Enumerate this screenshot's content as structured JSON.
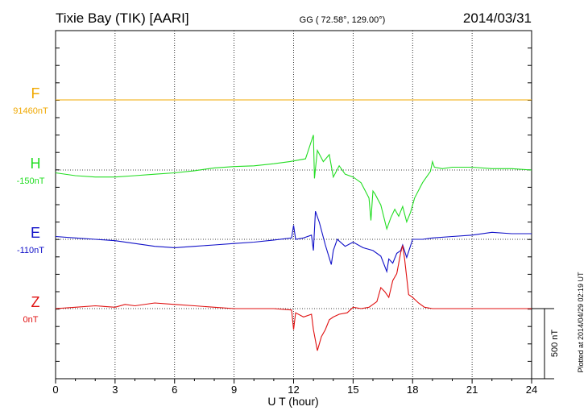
{
  "header": {
    "station": "Tixie Bay (TIK)  [AARI]",
    "coords": "GG ( 72.58°, 129.00°)",
    "date": "2014/03/31"
  },
  "plotted_note": "Plotted at 2014/04/29 02:19 UT",
  "scale_label": "500 nT",
  "colors": {
    "F": "#f0a800",
    "H": "#22dd22",
    "E": "#1010c8",
    "Z": "#e01010"
  },
  "chart_data": {
    "type": "line",
    "xlabel": "U T (hour)",
    "xlim": [
      0,
      24
    ],
    "x_ticks": [
      0,
      3,
      6,
      9,
      12,
      15,
      18,
      21,
      24
    ],
    "x_tick_labels": [
      "0",
      "3",
      "6",
      "9",
      "12",
      "15",
      "18",
      "21",
      "24"
    ],
    "grid": true,
    "scale_bar_nT": 500,
    "series": [
      {
        "name": "F",
        "baseline_label": "91460nT",
        "color": "#f0a800",
        "x": [
          0,
          6,
          12,
          18,
          24
        ],
        "values": [
          0,
          0,
          0,
          0,
          0
        ]
      },
      {
        "name": "H",
        "baseline_label": "-150nT",
        "color": "#22dd22",
        "x": [
          0,
          1,
          2,
          3,
          4,
          5,
          6,
          7,
          8,
          9,
          10,
          11,
          11.8,
          12.6,
          13.0,
          13.05,
          13.2,
          13.5,
          13.8,
          14.0,
          14.3,
          14.6,
          15.0,
          15.4,
          15.8,
          15.9,
          16.0,
          16.1,
          16.4,
          16.7,
          16.9,
          17.1,
          17.3,
          17.5,
          17.7,
          17.9,
          18.1,
          18.5,
          18.9,
          19.0,
          19.1,
          19.5,
          20,
          21,
          22,
          23,
          24
        ],
        "values": [
          -20,
          -40,
          -50,
          -50,
          -40,
          -30,
          -20,
          -5,
          15,
          25,
          30,
          45,
          60,
          80,
          250,
          -60,
          140,
          60,
          110,
          -50,
          30,
          -30,
          -50,
          -90,
          -200,
          -360,
          -150,
          -170,
          -250,
          -420,
          -340,
          -280,
          -330,
          -260,
          -370,
          -300,
          -200,
          -90,
          -10,
          60,
          20,
          10,
          20,
          20,
          10,
          10,
          0
        ]
      },
      {
        "name": "E",
        "baseline_label": "-110nT",
        "color": "#1010c8",
        "x": [
          0,
          1,
          2,
          3,
          4,
          5,
          6,
          7,
          8,
          9,
          10,
          11,
          11.9,
          12.0,
          12.1,
          12.5,
          12.9,
          13.0,
          13.1,
          13.3,
          13.6,
          13.9,
          14.0,
          14.2,
          14.6,
          15.0,
          15.5,
          16.0,
          16.4,
          16.7,
          16.8,
          17.0,
          17.2,
          17.4,
          17.5,
          17.7,
          18.0,
          18.5,
          19,
          20,
          21,
          22,
          23,
          24
        ],
        "values": [
          20,
          10,
          0,
          -10,
          -30,
          -50,
          -60,
          -50,
          -40,
          -30,
          -20,
          -5,
          10,
          100,
          0,
          10,
          30,
          -80,
          200,
          120,
          -40,
          -180,
          -80,
          0,
          -50,
          -20,
          -60,
          -80,
          -120,
          -230,
          -140,
          -170,
          -100,
          -80,
          -40,
          -130,
          0,
          0,
          10,
          20,
          30,
          50,
          40,
          40
        ]
      },
      {
        "name": "Z",
        "baseline_label": "0nT",
        "color": "#e01010",
        "x": [
          0,
          1,
          2,
          3,
          3.5,
          4,
          5,
          6,
          7,
          8,
          9,
          10,
          11,
          11.9,
          12.0,
          12.1,
          12.5,
          12.9,
          13.0,
          13.2,
          13.4,
          13.6,
          13.8,
          14.0,
          14.3,
          14.7,
          15.0,
          15.4,
          15.8,
          16.2,
          16.4,
          16.6,
          16.8,
          17.0,
          17.2,
          17.4,
          17.5,
          17.6,
          17.8,
          18.0,
          18.3,
          18.6,
          19,
          20,
          21,
          22,
          23,
          24
        ],
        "values": [
          0,
          10,
          20,
          10,
          30,
          20,
          40,
          30,
          20,
          10,
          0,
          0,
          0,
          -10,
          -150,
          -30,
          -60,
          -40,
          -150,
          -300,
          -200,
          -150,
          -80,
          -60,
          -40,
          -30,
          10,
          0,
          10,
          50,
          150,
          120,
          80,
          200,
          250,
          400,
          450,
          350,
          100,
          80,
          40,
          10,
          0,
          0,
          0,
          0,
          0,
          0
        ]
      }
    ]
  }
}
